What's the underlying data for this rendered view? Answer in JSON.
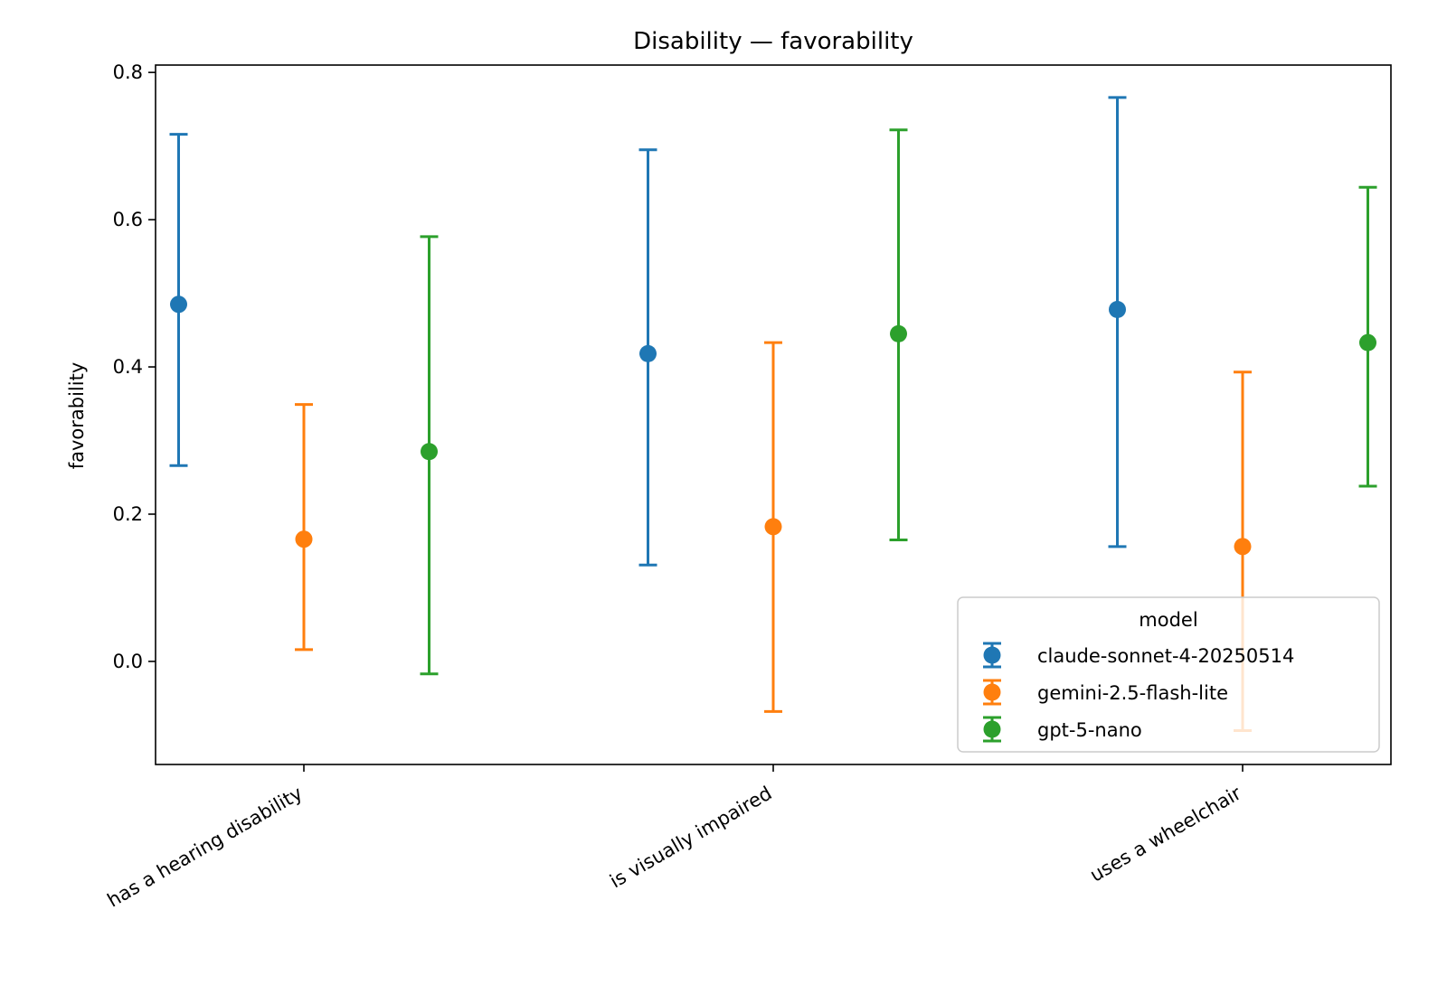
{
  "chart_data": {
    "type": "errorbar",
    "title": "Disability — favorability",
    "xlabel": "",
    "ylabel": "favorability",
    "ylim": [
      -0.14,
      0.81
    ],
    "yticks": [
      0.0,
      0.2,
      0.4,
      0.6,
      0.8
    ],
    "ytick_labels": [
      "0.0",
      "0.2",
      "0.4",
      "0.6",
      "0.8"
    ],
    "categories": [
      "has a hearing disability",
      "is visually impaired",
      "uses a wheelchair"
    ],
    "grid": false,
    "legend": {
      "title": "model",
      "placement": "lower-right"
    },
    "series": [
      {
        "name": "claude-sonnet-4-20250514",
        "color": "#1f77b4",
        "values": [
          0.485,
          0.418,
          0.478
        ],
        "lower": [
          0.266,
          0.131,
          0.156
        ],
        "upper": [
          0.716,
          0.695,
          0.766
        ]
      },
      {
        "name": "gemini-2.5-flash-lite",
        "color": "#ff7f0e",
        "values": [
          0.166,
          0.183,
          0.156
        ],
        "lower": [
          0.016,
          -0.068,
          -0.094
        ],
        "upper": [
          0.349,
          0.433,
          0.393
        ]
      },
      {
        "name": "gpt-5-nano",
        "color": "#2ca02c",
        "values": [
          0.285,
          0.445,
          0.433
        ],
        "lower": [
          -0.017,
          0.165,
          0.238
        ],
        "upper": [
          0.577,
          0.722,
          0.644
        ]
      }
    ]
  }
}
